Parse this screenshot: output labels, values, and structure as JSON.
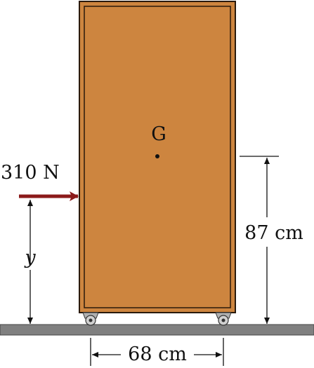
{
  "labels": {
    "center_of_gravity": "G",
    "force": "310 N",
    "height_var": "y",
    "height_dim": "87 cm",
    "width_dim": "68 cm"
  },
  "colors": {
    "cabinet_fill": "#CD853F",
    "cabinet_stroke": "#3a2310",
    "force_arrow": "#8B1A1A",
    "floor": "#808080",
    "dimension": "#111111"
  }
}
